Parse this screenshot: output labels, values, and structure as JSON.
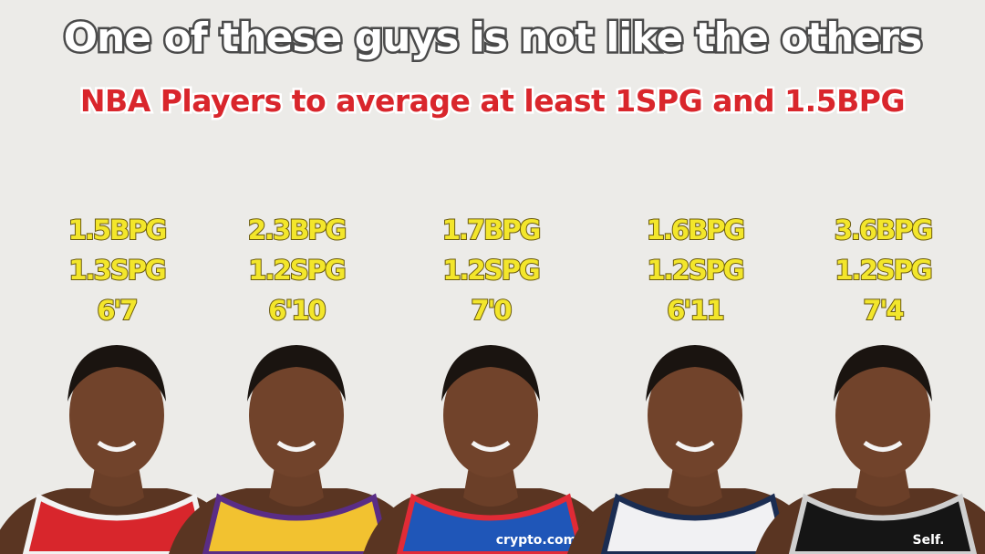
{
  "header": {
    "title": "One of these guys is not like the others",
    "subtitle": "NBA Players to average at least 1SPG and 1.5BPG"
  },
  "players": [
    {
      "stats": [
        "1.5BPG",
        "1.3SPG",
        "6'7"
      ],
      "jersey_color": "#d8262c",
      "trim_color": "#f2f2f2"
    },
    {
      "stats": [
        "2.3BPG",
        "1.2SPG",
        "6'10"
      ],
      "jersey_color": "#f2c230",
      "trim_color": "#5a2d86"
    },
    {
      "stats": [
        "1.7BPG",
        "1.2SPG",
        "7'0"
      ],
      "jersey_color": "#1f56b8",
      "trim_color": "#e12b36",
      "jersey_text": "crypto.com"
    },
    {
      "stats": [
        "1.6BPG",
        "1.2SPG",
        "6'11"
      ],
      "jersey_color": "#f1f1f3",
      "trim_color": "#1b2d52"
    },
    {
      "stats": [
        "3.6BPG",
        "1.2SPG",
        "7'4"
      ],
      "jersey_color": "#151515",
      "trim_color": "#cfcfcf",
      "jersey_text": "Self."
    }
  ]
}
